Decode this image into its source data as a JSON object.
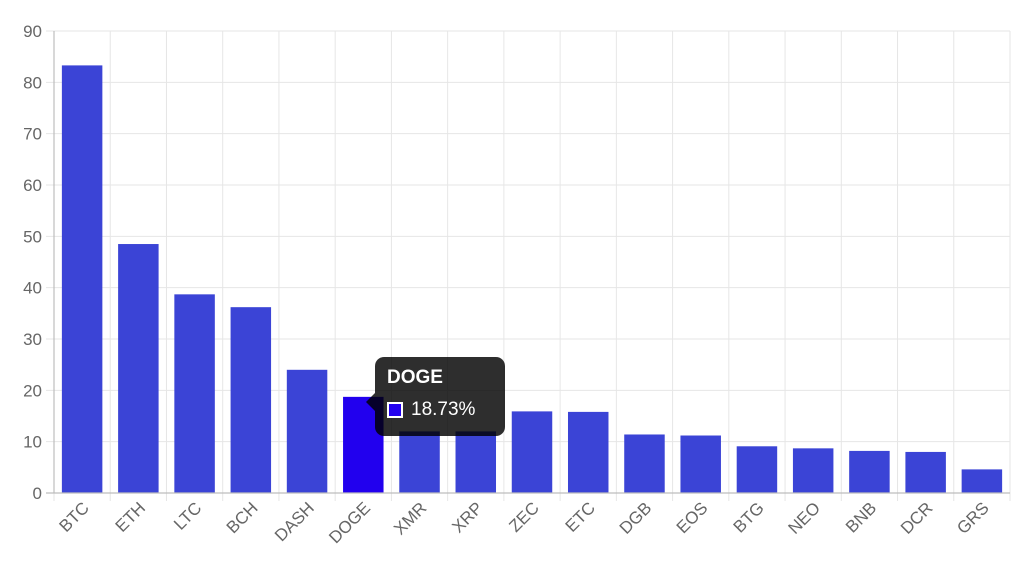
{
  "chart_data": {
    "type": "bar",
    "title": "",
    "xlabel": "",
    "ylabel": "",
    "categories": [
      "BTC",
      "ETH",
      "LTC",
      "BCH",
      "DASH",
      "DOGE",
      "XMR",
      "XRP",
      "ZEC",
      "ETC",
      "DGB",
      "EOS",
      "BTG",
      "NEO",
      "BNB",
      "DCR",
      "GRS"
    ],
    "values": [
      83.3,
      48.5,
      38.7,
      36.2,
      24.0,
      18.73,
      12.0,
      12.0,
      15.9,
      15.8,
      11.4,
      11.2,
      9.1,
      8.7,
      8.2,
      8.0,
      4.6
    ],
    "ylim": [
      0,
      90
    ],
    "yticks": [
      0,
      10,
      20,
      30,
      40,
      50,
      60,
      70,
      80,
      90
    ],
    "grid": true,
    "bar_color": "#3b44d6",
    "highlight_color": "#2200ee",
    "highlight_index": 5
  },
  "tooltip": {
    "title": "DOGE",
    "value": "18.73%",
    "swatch_color": "#2200ee"
  }
}
